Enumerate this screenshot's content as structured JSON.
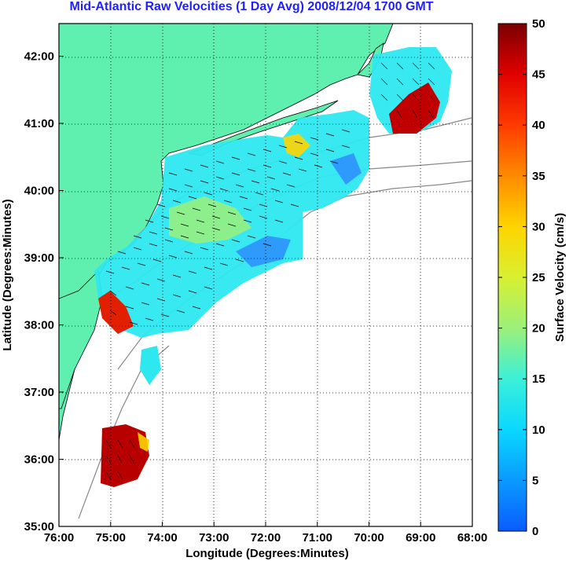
{
  "title": "Mid-Atlantic Raw Velocities (1 Day Avg) 2008/12/04 1700 GMT",
  "x_axis": {
    "label": "Longitude (Degrees:Minutes)",
    "ticks": [
      "76:00",
      "75:00",
      "74:00",
      "73:00",
      "72:00",
      "71:00",
      "70:00",
      "69:00",
      "68:00"
    ]
  },
  "y_axis": {
    "label": "Latitude (Degrees:Minutes)",
    "ticks": [
      "35:00",
      "36:00",
      "37:00",
      "38:00",
      "39:00",
      "40:00",
      "41:00",
      "42:00"
    ]
  },
  "colorbar": {
    "label": "Surface Velocity (cm/s)",
    "min": 0,
    "max": 50,
    "ticks": [
      "0",
      "5",
      "10",
      "15",
      "20",
      "25",
      "30",
      "35",
      "40",
      "45",
      "50"
    ]
  },
  "colors": {
    "land": "#5ff0b0",
    "coast": "#000000",
    "bathymetry": "#888888",
    "grid": "#000000",
    "title": "#1f1fff"
  }
}
